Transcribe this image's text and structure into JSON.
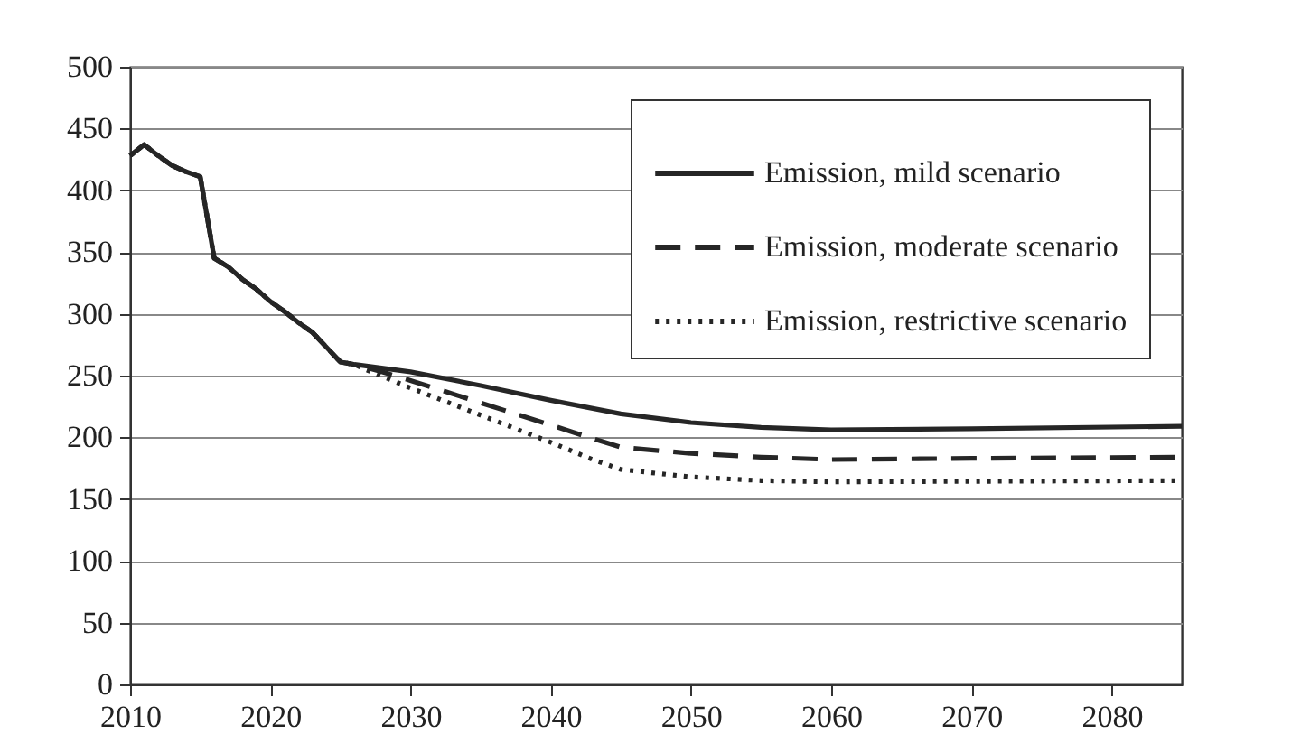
{
  "chart_data": {
    "type": "line",
    "xlim": [
      2010,
      2085
    ],
    "xticks": [
      2010,
      2020,
      2030,
      2040,
      2050,
      2060,
      2070,
      2080
    ],
    "ylim": [
      0,
      500
    ],
    "yticks": [
      0,
      50,
      100,
      150,
      200,
      250,
      300,
      350,
      400,
      450,
      500
    ],
    "grid": "y",
    "legend": "top right",
    "series": [
      {
        "name": "Emission, mild scenario",
        "color": "#262626",
        "line_style": "solid",
        "x": [
          2010,
          2011,
          2012,
          2013,
          2014,
          2015,
          2016,
          2017,
          2018,
          2019,
          2020,
          2021,
          2022,
          2023,
          2024,
          2025,
          2026,
          2030,
          2035,
          2040,
          2045,
          2050,
          2055,
          2060,
          2070,
          2085
        ],
        "values": [
          428,
          437,
          428,
          420,
          415,
          411,
          345,
          338,
          328,
          320,
          310,
          302,
          293,
          285,
          273,
          261,
          259,
          253,
          242,
          230,
          219,
          212,
          208,
          206,
          207,
          209
        ]
      },
      {
        "name": "Emission, moderate scenario",
        "color": "#262626",
        "line_style": "dashed",
        "x": [
          2010,
          2011,
          2012,
          2013,
          2014,
          2015,
          2016,
          2017,
          2018,
          2019,
          2020,
          2021,
          2022,
          2023,
          2024,
          2025,
          2026,
          2028,
          2030,
          2035,
          2040,
          2043,
          2045,
          2050,
          2055,
          2060,
          2070,
          2085
        ],
        "values": [
          428,
          437,
          428,
          420,
          415,
          411,
          345,
          338,
          328,
          320,
          310,
          302,
          293,
          285,
          273,
          261,
          259,
          253,
          246,
          228,
          210,
          199,
          192,
          187,
          184,
          182,
          183,
          184
        ]
      },
      {
        "name": "Emission, restrictive scenario",
        "color": "#262626",
        "line_style": "dotted",
        "x": [
          2010,
          2011,
          2012,
          2013,
          2014,
          2015,
          2016,
          2017,
          2018,
          2019,
          2020,
          2021,
          2022,
          2023,
          2024,
          2025,
          2026,
          2027,
          2030,
          2035,
          2040,
          2043,
          2045,
          2050,
          2055,
          2060,
          2085
        ],
        "values": [
          428,
          437,
          428,
          420,
          415,
          411,
          345,
          338,
          328,
          320,
          310,
          302,
          293,
          285,
          273,
          261,
          259,
          254,
          240,
          218,
          196,
          182,
          174,
          168,
          165,
          164,
          165
        ]
      }
    ]
  }
}
